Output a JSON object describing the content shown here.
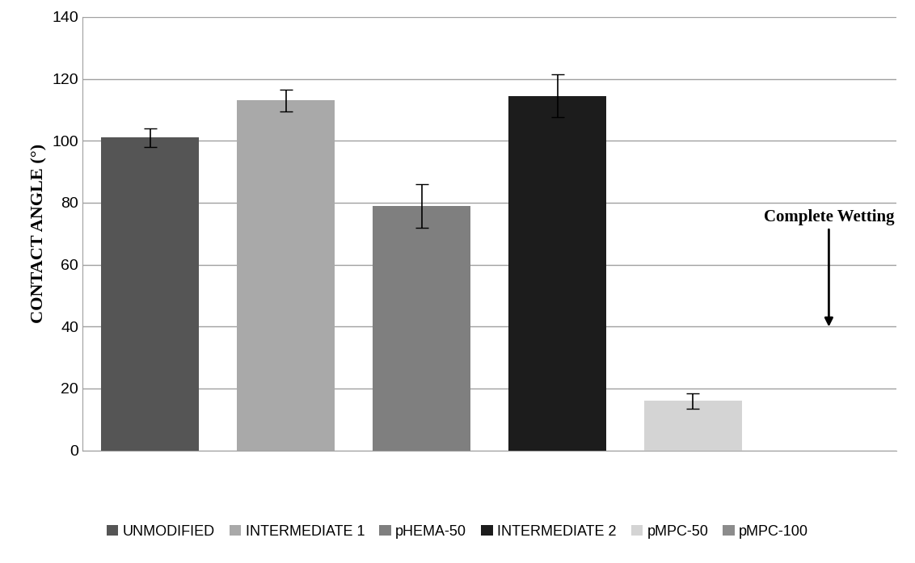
{
  "chart_data": {
    "type": "bar",
    "y_label": "CONTACT ANGLE (°)",
    "categories": [
      "UNMODIFIED",
      "INTERMEDIATE 1",
      "pHEMA-50",
      "INTERMEDIATE 2",
      "pMPC-50",
      "pMPC-100"
    ],
    "values": [
      101,
      113,
      79,
      114.5,
      16,
      0
    ],
    "errors": [
      3,
      3.5,
      7,
      7,
      2.5,
      null
    ],
    "colors": [
      "#555555",
      "#a9a9a9",
      "#7f7f7f",
      "#1c1c1c",
      "#d4d4d4",
      "#8c8c8c"
    ],
    "ylim": [
      0,
      140
    ],
    "yticks": [
      0,
      20,
      40,
      60,
      80,
      100,
      120,
      140
    ],
    "grid": true,
    "legend": "lower center",
    "tick_labels": "y",
    "annotations": [
      {
        "text": "Complete Wetting",
        "category": "pMPC-100"
      }
    ]
  }
}
